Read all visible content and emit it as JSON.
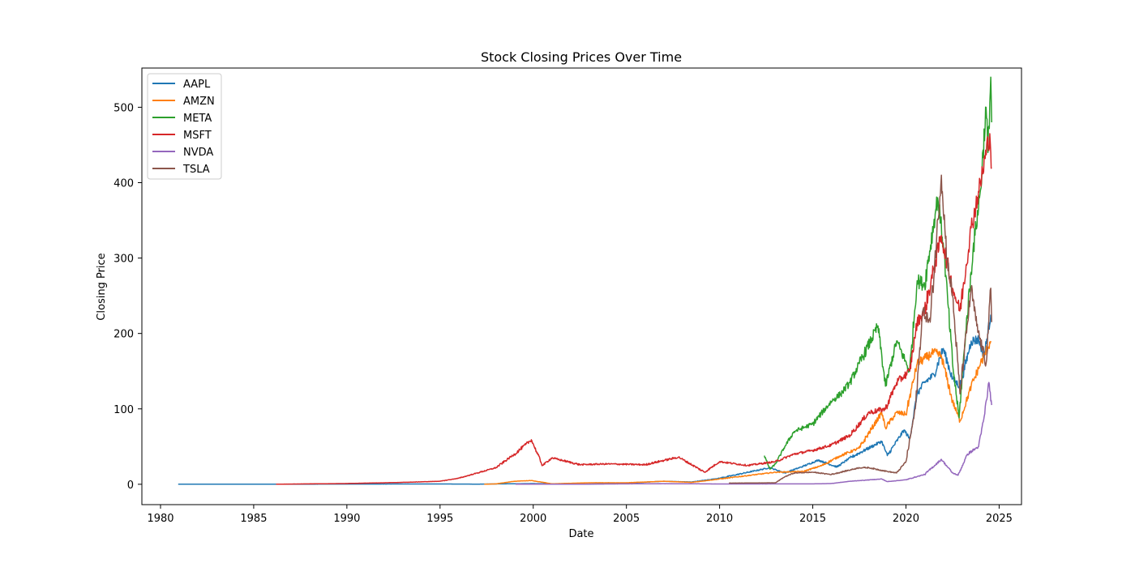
{
  "chart_data": {
    "type": "line",
    "title": "Stock Closing Prices Over Time",
    "xlabel": "Date",
    "ylabel": "Closing Price",
    "xlim": [
      1979.0,
      2026.2
    ],
    "ylim": [
      -27,
      552
    ],
    "xticks": [
      1980,
      1985,
      1990,
      1995,
      2000,
      2005,
      2010,
      2015,
      2020,
      2025
    ],
    "yticks": [
      0,
      100,
      200,
      300,
      400,
      500
    ],
    "grid": false,
    "legend_position": "top-left",
    "series": [
      {
        "name": "AAPL",
        "color": "#1f77b4",
        "points": [
          [
            1980.95,
            0.1
          ],
          [
            1985,
            0.1
          ],
          [
            1990,
            0.3
          ],
          [
            1995,
            0.4
          ],
          [
            1997,
            0.2
          ],
          [
            2000,
            0.9
          ],
          [
            2003,
            0.3
          ],
          [
            2005,
            1.5
          ],
          [
            2007,
            4
          ],
          [
            2008.5,
            3
          ],
          [
            2010,
            8
          ],
          [
            2012.7,
            22
          ],
          [
            2013.5,
            15
          ],
          [
            2014.5,
            24
          ],
          [
            2015.3,
            32
          ],
          [
            2016.3,
            23
          ],
          [
            2017,
            35
          ],
          [
            2018.7,
            57
          ],
          [
            2019,
            38
          ],
          [
            2019.9,
            72
          ],
          [
            2020.2,
            60
          ],
          [
            2020.6,
            120
          ],
          [
            2021,
            135
          ],
          [
            2021.5,
            145
          ],
          [
            2022,
            180
          ],
          [
            2022.5,
            140
          ],
          [
            2022.9,
            130
          ],
          [
            2023.5,
            190
          ],
          [
            2023.9,
            192
          ],
          [
            2024.2,
            170
          ],
          [
            2024.55,
            225
          ]
        ]
      },
      {
        "name": "AMZN",
        "color": "#ff7f0e",
        "points": [
          [
            1997.37,
            0.1
          ],
          [
            1998,
            0.5
          ],
          [
            1999,
            4
          ],
          [
            1999.9,
            5
          ],
          [
            2001,
            0.6
          ],
          [
            2003,
            2
          ],
          [
            2005,
            2
          ],
          [
            2007,
            4
          ],
          [
            2008.5,
            2.5
          ],
          [
            2010,
            7
          ],
          [
            2013,
            16
          ],
          [
            2014.5,
            17
          ],
          [
            2015.5,
            25
          ],
          [
            2016.5,
            38
          ],
          [
            2017.5,
            48
          ],
          [
            2018.7,
            95
          ],
          [
            2018.9,
            75
          ],
          [
            2019.5,
            95
          ],
          [
            2020,
            93
          ],
          [
            2020.6,
            160
          ],
          [
            2021.5,
            175
          ],
          [
            2021.9,
            170
          ],
          [
            2022.5,
            110
          ],
          [
            2022.9,
            84
          ],
          [
            2023.5,
            130
          ],
          [
            2024,
            160
          ],
          [
            2024.55,
            190
          ]
        ]
      },
      {
        "name": "META",
        "color": "#2ca02c",
        "points": [
          [
            2012.4,
            38
          ],
          [
            2012.7,
            20
          ],
          [
            2013,
            27
          ],
          [
            2013.5,
            50
          ],
          [
            2014,
            70
          ],
          [
            2015,
            80
          ],
          [
            2016,
            110
          ],
          [
            2016.5,
            120
          ],
          [
            2017,
            135
          ],
          [
            2017.5,
            160
          ],
          [
            2018.5,
            210
          ],
          [
            2018.9,
            130
          ],
          [
            2019.5,
            190
          ],
          [
            2020.2,
            150
          ],
          [
            2020.6,
            270
          ],
          [
            2021,
            265
          ],
          [
            2021.7,
            380
          ],
          [
            2022,
            320
          ],
          [
            2022.5,
            160
          ],
          [
            2022.85,
            88
          ],
          [
            2023.2,
            200
          ],
          [
            2023.6,
            310
          ],
          [
            2024,
            390
          ],
          [
            2024.3,
            500
          ],
          [
            2024.4,
            440
          ],
          [
            2024.55,
            540
          ],
          [
            2024.6,
            480
          ]
        ]
      },
      {
        "name": "MSFT",
        "color": "#d62728",
        "points": [
          [
            1986.2,
            0.1
          ],
          [
            1990,
            1
          ],
          [
            1993,
            2.5
          ],
          [
            1995,
            4
          ],
          [
            1996,
            8
          ],
          [
            1997,
            15
          ],
          [
            1998,
            22
          ],
          [
            1999,
            40
          ],
          [
            1999.9,
            59
          ],
          [
            2000.5,
            25
          ],
          [
            2001,
            35
          ],
          [
            2002.5,
            26
          ],
          [
            2004,
            27
          ],
          [
            2006,
            26
          ],
          [
            2007.8,
            36
          ],
          [
            2009.2,
            16
          ],
          [
            2010,
            30
          ],
          [
            2011.5,
            25
          ],
          [
            2013,
            30
          ],
          [
            2014,
            40
          ],
          [
            2015,
            45
          ],
          [
            2016,
            52
          ],
          [
            2017,
            65
          ],
          [
            2018,
            95
          ],
          [
            2018.9,
            100
          ],
          [
            2019.5,
            135
          ],
          [
            2020.2,
            150
          ],
          [
            2020.6,
            215
          ],
          [
            2021,
            230
          ],
          [
            2021.9,
            330
          ],
          [
            2022.5,
            260
          ],
          [
            2022.9,
            230
          ],
          [
            2023.5,
            340
          ],
          [
            2024,
            400
          ],
          [
            2024.5,
            465
          ],
          [
            2024.6,
            420
          ]
        ]
      },
      {
        "name": "NVDA",
        "color": "#9467bd",
        "points": [
          [
            1999.05,
            0.05
          ],
          [
            2002,
            0.1
          ],
          [
            2007,
            0.8
          ],
          [
            2010,
            0.4
          ],
          [
            2015,
            0.5
          ],
          [
            2016,
            1
          ],
          [
            2017,
            4
          ],
          [
            2018.7,
            7
          ],
          [
            2019,
            3.5
          ],
          [
            2020,
            6
          ],
          [
            2021,
            13
          ],
          [
            2021.9,
            33
          ],
          [
            2022.5,
            15
          ],
          [
            2022.8,
            12
          ],
          [
            2023.3,
            40
          ],
          [
            2023.9,
            50
          ],
          [
            2024.2,
            90
          ],
          [
            2024.45,
            135
          ],
          [
            2024.6,
            105
          ]
        ]
      },
      {
        "name": "TSLA",
        "color": "#8c564b",
        "points": [
          [
            2010.5,
            1.5
          ],
          [
            2013,
            2
          ],
          [
            2013.5,
            10
          ],
          [
            2014,
            15
          ],
          [
            2015,
            16
          ],
          [
            2016,
            13
          ],
          [
            2017.5,
            22
          ],
          [
            2018,
            22
          ],
          [
            2019,
            17
          ],
          [
            2019.5,
            15
          ],
          [
            2020,
            30
          ],
          [
            2020.5,
            100
          ],
          [
            2020.9,
            230
          ],
          [
            2021.3,
            215
          ],
          [
            2021.9,
            410
          ],
          [
            2022.2,
            300
          ],
          [
            2022.5,
            250
          ],
          [
            2022.9,
            120
          ],
          [
            2023.5,
            260
          ],
          [
            2023.8,
            210
          ],
          [
            2024.3,
            160
          ],
          [
            2024.55,
            260
          ],
          [
            2024.6,
            215
          ]
        ]
      }
    ]
  }
}
